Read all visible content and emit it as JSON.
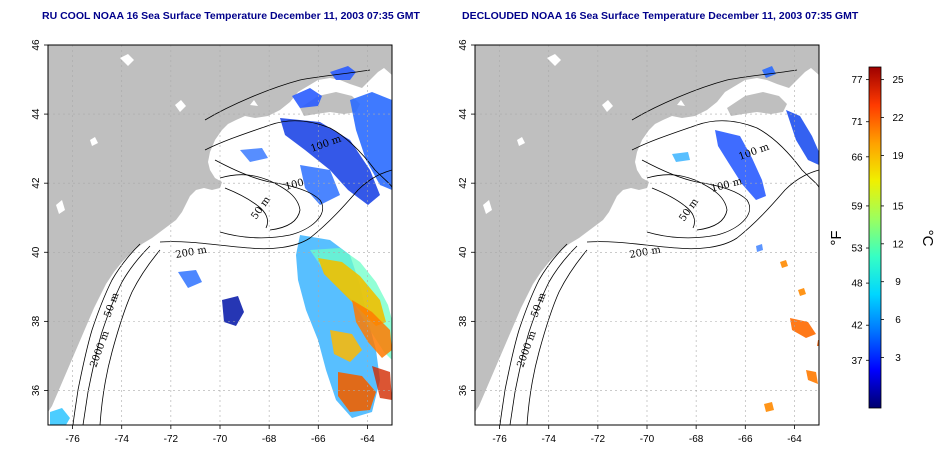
{
  "maps": [
    {
      "id": "left",
      "title": "RU COOL NOAA 16 Sea Surface Temperature December 11, 2003 07:35 GMT",
      "mode": "cloudy"
    },
    {
      "id": "right",
      "title": "DECLOUDED NOAA 16 Sea Surface Temperature December 11, 2003 07:35 GMT",
      "mode": "declouded"
    }
  ],
  "axes": {
    "lon_ticks": [
      "-76",
      "-74",
      "-72",
      "-70",
      "-68",
      "-66",
      "-64"
    ],
    "lat_ticks": [
      "46",
      "44",
      "42",
      "40",
      "38",
      "36"
    ],
    "lon_range": [
      -77.0,
      -63.0
    ],
    "lat_range": [
      35.0,
      46.0
    ]
  },
  "contour_labels": [
    "100 m",
    "100",
    "50 m",
    "200 m",
    "50 m",
    "2000 m"
  ],
  "contour_labels_right": [
    "100 m",
    "100 m",
    "50 m",
    "200 m",
    "50 m",
    "2000 m"
  ],
  "colorbar": {
    "fahrenheit_ticks": [
      "77",
      "71",
      "66",
      "59",
      "53",
      "48",
      "42",
      "37"
    ],
    "celsius_ticks": [
      "25",
      "22",
      "19",
      "15",
      "12",
      "9",
      "6",
      "3"
    ],
    "fahrenheit_unit": "°F",
    "celsius_unit": "°C",
    "colors": [
      "#00006e",
      "#0000ff",
      "#0072ff",
      "#00d6ff",
      "#36ffc4",
      "#9cff5e",
      "#f0f000",
      "#ffa000",
      "#ff3a00",
      "#9e0000"
    ]
  },
  "colors": {
    "land": "#bfbfbf",
    "title": "#00008b",
    "grid": "#aaaaaa"
  }
}
